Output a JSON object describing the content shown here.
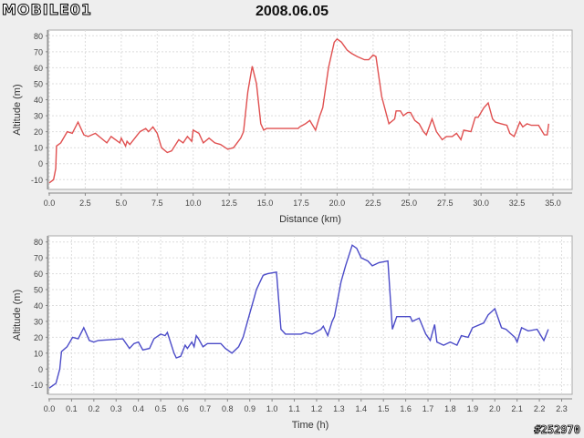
{
  "logo": "MOBILE01",
  "title": "2008.06.05",
  "watermark": "#252970",
  "chart_data": [
    {
      "type": "line",
      "xlabel": "Distance (km)",
      "ylabel": "Altitude (m)",
      "color": "#e05050",
      "xlim": [
        0,
        36.5
      ],
      "ylim": [
        -16.5,
        82
      ],
      "xticks": [
        0,
        2.5,
        5,
        7.5,
        10,
        12.5,
        15,
        17.5,
        20,
        22.5,
        25,
        27.5,
        30,
        32.5,
        35
      ],
      "xtick_decimals": 1,
      "yticks": [
        -10,
        0,
        10,
        20,
        30,
        40,
        50,
        60,
        70,
        80
      ],
      "x": [
        0,
        0.3,
        0.45,
        0.5,
        0.8,
        1.25,
        1.6,
        2.0,
        2.4,
        2.7,
        3.2,
        4.0,
        4.3,
        4.9,
        5.0,
        5.3,
        5.4,
        5.6,
        6.3,
        6.7,
        6.9,
        7.2,
        7.5,
        7.8,
        8.2,
        8.5,
        9.0,
        9.3,
        9.6,
        9.9,
        10.0,
        10.4,
        10.7,
        11.1,
        11.5,
        11.9,
        12.4,
        12.8,
        13.3,
        13.5,
        13.8,
        14.1,
        14.4,
        14.7,
        14.9,
        15.1,
        17.3,
        17.4,
        17.8,
        18.1,
        18.5,
        18.8,
        19.0,
        19.4,
        19.8,
        20.0,
        20.3,
        20.7,
        21.0,
        21.4,
        21.9,
        22.2,
        22.5,
        22.7,
        23.1,
        23.6,
        24.0,
        24.1,
        24.4,
        24.6,
        24.9,
        25.1,
        25.4,
        25.7,
        26.0,
        26.2,
        26.6,
        26.9,
        27.3,
        27.6,
        28.0,
        28.3,
        28.6,
        28.8,
        29.3,
        29.6,
        29.8,
        30.2,
        30.5,
        30.8,
        31.0,
        31.4,
        31.8,
        32.0,
        32.3,
        32.7,
        32.9,
        33.2,
        33.5,
        34.0,
        34.4,
        34.6,
        34.7
      ],
      "y": [
        -12,
        -10,
        -3,
        11,
        13,
        20,
        19,
        26,
        18,
        17,
        19,
        13,
        17,
        13,
        16,
        11,
        14,
        12,
        20,
        22,
        20,
        23,
        19,
        10,
        7,
        8,
        15,
        13,
        17,
        14,
        21,
        19,
        13,
        16,
        13,
        12,
        9,
        10,
        16,
        20,
        45,
        61,
        50,
        25,
        21,
        22,
        22,
        23,
        25,
        27,
        21,
        30,
        35,
        60,
        76,
        78,
        76,
        71,
        69,
        67,
        65,
        65,
        68,
        67,
        42,
        25,
        28,
        33,
        33,
        30,
        32,
        32,
        27,
        25,
        20,
        18,
        28,
        20,
        15,
        17,
        17,
        19,
        15,
        21,
        20,
        29,
        29,
        35,
        38,
        28,
        26,
        25,
        24,
        19,
        17,
        26,
        23,
        25,
        24,
        24,
        18,
        18,
        25
      ]
    },
    {
      "type": "line",
      "xlabel": "Time (h)",
      "ylabel": "Altitude (m)",
      "color": "#4b4bc8",
      "xlim": [
        0,
        2.35
      ],
      "ylim": [
        -16.5,
        82
      ],
      "xticks": [
        0,
        0.1,
        0.2,
        0.3,
        0.4,
        0.5,
        0.6,
        0.7,
        0.8,
        0.9,
        1.0,
        1.1,
        1.2,
        1.3,
        1.4,
        1.5,
        1.6,
        1.7,
        1.8,
        1.9,
        2.0,
        2.1,
        2.2,
        2.3
      ],
      "xtick_decimals": 1,
      "yticks": [
        -10,
        0,
        10,
        20,
        30,
        40,
        50,
        60,
        70,
        80
      ],
      "x": [
        0,
        0.03,
        0.047,
        0.055,
        0.08,
        0.105,
        0.13,
        0.155,
        0.18,
        0.2,
        0.22,
        0.33,
        0.36,
        0.38,
        0.4,
        0.42,
        0.45,
        0.47,
        0.5,
        0.52,
        0.53,
        0.56,
        0.57,
        0.59,
        0.61,
        0.62,
        0.64,
        0.65,
        0.66,
        0.67,
        0.69,
        0.71,
        0.77,
        0.79,
        0.82,
        0.85,
        0.87,
        0.9,
        0.92,
        0.93,
        0.96,
        0.98,
        1.02,
        1.04,
        1.06,
        1.13,
        1.15,
        1.18,
        1.22,
        1.23,
        1.25,
        1.27,
        1.28,
        1.31,
        1.33,
        1.36,
        1.38,
        1.4,
        1.43,
        1.45,
        1.48,
        1.52,
        1.54,
        1.56,
        1.62,
        1.63,
        1.66,
        1.69,
        1.71,
        1.73,
        1.74,
        1.77,
        1.8,
        1.83,
        1.85,
        1.88,
        1.9,
        1.95,
        1.97,
        2.0,
        2.03,
        2.05,
        2.09,
        2.1,
        2.12,
        2.15,
        2.19,
        2.22,
        2.24
      ],
      "y": [
        -12,
        -9,
        0,
        11,
        14,
        20,
        19,
        26,
        18,
        17,
        18,
        19,
        13,
        16,
        17,
        12,
        13,
        19,
        22,
        21,
        23,
        10,
        7,
        8,
        15,
        13,
        17,
        14,
        21,
        19,
        14,
        16,
        16,
        13,
        10,
        14,
        20,
        35,
        45,
        50,
        59,
        60,
        61,
        25,
        22,
        22,
        23,
        22,
        25,
        27,
        21,
        30,
        33,
        55,
        65,
        78,
        76,
        70,
        68,
        65,
        67,
        68,
        25,
        33,
        33,
        30,
        32,
        22,
        18,
        28,
        17,
        15,
        17,
        15,
        21,
        20,
        26,
        29,
        34,
        38,
        26,
        25,
        20,
        17,
        26,
        24,
        25,
        18,
        25
      ]
    }
  ]
}
